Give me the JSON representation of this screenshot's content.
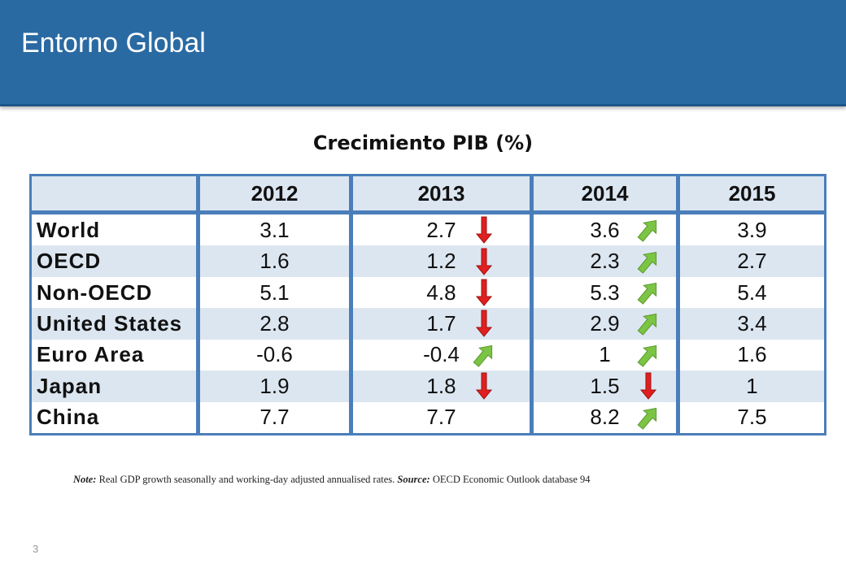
{
  "header": {
    "title": "Entorno Global"
  },
  "subtitle": "Crecimiento PIB (%)",
  "table": {
    "columns": [
      "",
      "2012",
      "2013",
      "2014",
      "2015"
    ],
    "rows": [
      {
        "country": "World",
        "v2012": "3.1",
        "v2013": "2.7",
        "a2013": "down",
        "v2014": "3.6",
        "a2014": "up",
        "v2015": "3.9"
      },
      {
        "country": "OECD",
        "v2012": "1.6",
        "v2013": "1.2",
        "a2013": "down",
        "v2014": "2.3",
        "a2014": "up",
        "v2015": "2.7"
      },
      {
        "country": "Non-OECD",
        "v2012": "5.1",
        "v2013": "4.8",
        "a2013": "down",
        "v2014": "5.3",
        "a2014": "up",
        "v2015": "5.4"
      },
      {
        "country": "United States",
        "v2012": "2.8",
        "v2013": "1.7",
        "a2013": "down",
        "v2014": "2.9",
        "a2014": "up",
        "v2015": "3.4"
      },
      {
        "country": "Euro Area",
        "v2012": "-0.6",
        "v2013": "-0.4",
        "a2013": "up",
        "v2014": "1",
        "a2014": "up",
        "v2015": "1.6"
      },
      {
        "country": "Japan",
        "v2012": "1.9",
        "v2013": "1.8",
        "a2013": "down",
        "v2014": "1.5",
        "a2014": "down",
        "v2015": "1"
      },
      {
        "country": "China",
        "v2012": "7.7",
        "v2013": "7.7",
        "a2013": "",
        "v2014": "8.2",
        "a2014": "up",
        "v2015": "7.5"
      }
    ]
  },
  "note": {
    "label": "Note:",
    "text": " Real GDP growth seasonally and working-day adjusted annualised rates. ",
    "source_label": "Source:",
    "source_text": " OECD Economic Outlook database 94"
  },
  "page_number": "3",
  "colors": {
    "header": "#2a6aa3",
    "table_border": "#4a7ebb",
    "row_alt": "#dce6f1",
    "arrow_up": "#7cc444",
    "arrow_down": "#e02020"
  }
}
